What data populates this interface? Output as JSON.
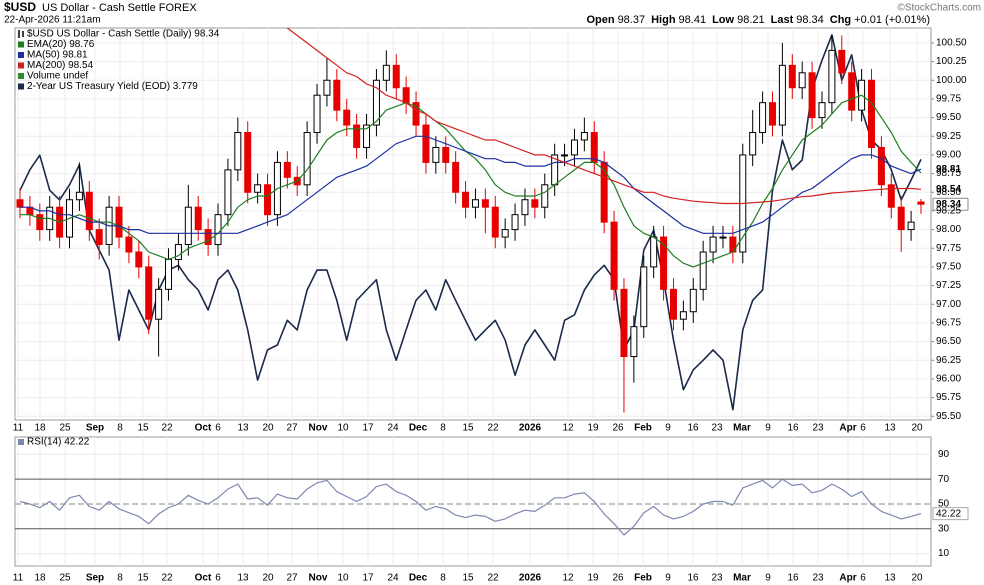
{
  "header": {
    "symbol": "$USD",
    "name": "US Dollar - Cash Settle FOREX",
    "timestamp": "22-Apr-2026 11:21am",
    "quote": [
      {
        "label": "Open",
        "value": "98.37"
      },
      {
        "label": "High",
        "value": "98.41"
      },
      {
        "label": "Low",
        "value": "98.21"
      },
      {
        "label": "Last",
        "value": "98.34"
      },
      {
        "label": "Chg",
        "value": "+0.01 (+0.01%)"
      }
    ],
    "copyright": "©StockCharts.com"
  },
  "chart_data": [
    {
      "type": "candlestick",
      "title": "$USD US Dollar - Cash Settle (Daily) 98.34",
      "volume_label": "Volume undef",
      "x_labels": [
        "11",
        "18",
        "25",
        "Sep",
        "8",
        "15",
        "22",
        "Oct",
        "6",
        "13",
        "20",
        "27",
        "Nov",
        "10",
        "17",
        "24",
        "Dec",
        "8",
        "15",
        "22",
        "2026",
        "12",
        "19",
        "26",
        "Feb",
        "9",
        "16",
        "23",
        "Mar",
        "9",
        "16",
        "23",
        "Apr",
        "6",
        "13",
        "20"
      ],
      "open": [
        98.4,
        98.3,
        98.2,
        98.0,
        98.3,
        97.9,
        98.4,
        98.5,
        98.0,
        97.8,
        98.3,
        97.9,
        97.7,
        97.5,
        96.8,
        97.2,
        97.6,
        97.8,
        98.3,
        98.0,
        97.8,
        98.2,
        98.8,
        99.3,
        98.5,
        98.6,
        98.2,
        98.9,
        98.7,
        98.6,
        99.3,
        99.8,
        100.0,
        99.6,
        99.4,
        99.1,
        99.4,
        100.0,
        100.2,
        99.9,
        99.7,
        99.4,
        98.9,
        99.1,
        98.9,
        98.5,
        98.3,
        98.4,
        98.3,
        97.9,
        98.0,
        98.2,
        98.4,
        98.3,
        98.6,
        99.0,
        99.0,
        99.2,
        99.3,
        98.9,
        98.1,
        97.2,
        96.3,
        96.7,
        97.5,
        97.9,
        97.2,
        96.8,
        96.9,
        97.2,
        97.7,
        97.9,
        97.9,
        97.7,
        99.0,
        99.3,
        99.7,
        99.4,
        100.2,
        99.9,
        100.1,
        99.5,
        99.7,
        100.4,
        100.1,
        99.6,
        100.0,
        99.1,
        98.6,
        98.3,
        98.0,
        98.37
      ],
      "high": [
        98.55,
        98.45,
        98.35,
        98.45,
        98.45,
        98.55,
        98.9,
        98.65,
        98.15,
        98.45,
        98.45,
        98.05,
        97.85,
        97.65,
        97.35,
        97.75,
        97.95,
        98.6,
        98.45,
        98.15,
        98.35,
        98.95,
        99.5,
        99.45,
        98.75,
        98.75,
        99.05,
        99.05,
        98.85,
        99.45,
        99.95,
        100.3,
        100.15,
        99.75,
        99.55,
        99.55,
        100.15,
        100.4,
        100.35,
        100.05,
        99.85,
        99.55,
        99.25,
        99.25,
        99.05,
        98.65,
        98.55,
        98.55,
        98.45,
        98.15,
        98.35,
        98.55,
        98.55,
        98.75,
        99.15,
        99.15,
        99.35,
        99.5,
        99.45,
        99.05,
        98.25,
        97.35,
        96.85,
        97.65,
        98.05,
        98.05,
        97.35,
        97.05,
        97.35,
        97.85,
        98.05,
        98.05,
        98.05,
        99.15,
        99.6,
        99.85,
        99.85,
        100.5,
        100.35,
        100.25,
        100.25,
        99.85,
        100.6,
        100.6,
        100.25,
        100.15,
        100.15,
        99.25,
        98.75,
        98.45,
        98.25,
        98.41
      ],
      "low": [
        98.15,
        98.05,
        97.85,
        97.85,
        97.75,
        97.75,
        98.25,
        97.85,
        97.6,
        97.65,
        97.75,
        97.55,
        97.35,
        96.6,
        96.3,
        97.05,
        97.45,
        97.65,
        97.85,
        97.65,
        97.65,
        98.05,
        98.65,
        98.35,
        98.35,
        98.05,
        98.05,
        98.55,
        98.45,
        98.45,
        99.15,
        99.65,
        99.45,
        99.25,
        98.95,
        98.95,
        99.25,
        99.85,
        99.75,
        99.55,
        99.25,
        98.75,
        98.75,
        98.75,
        98.35,
        98.15,
        98.15,
        97.95,
        97.75,
        97.75,
        97.85,
        98.05,
        98.15,
        98.15,
        98.45,
        98.85,
        98.85,
        99.05,
        98.75,
        97.95,
        97.05,
        95.55,
        95.95,
        96.55,
        97.35,
        97.05,
        96.65,
        96.65,
        96.75,
        97.05,
        97.55,
        97.75,
        97.55,
        97.55,
        98.85,
        99.15,
        99.25,
        99.25,
        99.75,
        99.75,
        99.35,
        99.35,
        99.55,
        99.95,
        99.45,
        99.45,
        98.95,
        98.45,
        98.15,
        97.7,
        97.85,
        98.21
      ],
      "close": [
        98.3,
        98.2,
        98.0,
        98.3,
        97.9,
        98.4,
        98.5,
        98.0,
        97.8,
        98.3,
        97.9,
        97.7,
        97.5,
        96.8,
        97.2,
        97.6,
        97.8,
        98.3,
        98.0,
        97.8,
        98.2,
        98.8,
        99.3,
        98.5,
        98.6,
        98.2,
        98.9,
        98.7,
        98.6,
        99.3,
        99.8,
        100.0,
        99.6,
        99.4,
        99.1,
        99.4,
        100.0,
        100.2,
        99.9,
        99.7,
        99.4,
        98.9,
        99.1,
        98.9,
        98.5,
        98.3,
        98.4,
        98.3,
        97.9,
        98.0,
        98.2,
        98.4,
        98.3,
        98.6,
        99.0,
        99.0,
        99.2,
        99.3,
        98.9,
        98.1,
        97.2,
        96.3,
        96.7,
        97.5,
        97.9,
        97.2,
        96.8,
        96.9,
        97.2,
        97.7,
        97.9,
        97.9,
        97.7,
        99.0,
        99.3,
        99.7,
        99.4,
        100.2,
        99.9,
        100.1,
        99.5,
        99.7,
        100.4,
        100.1,
        99.6,
        100.0,
        99.1,
        98.6,
        98.3,
        98.0,
        98.1,
        98.34
      ],
      "up_color": "#000000",
      "down_color": "#e60000",
      "volume_color": "#2e8b2e",
      "series": [
        {
          "name": "EMA(20) 98.76",
          "color": "#1e7d1e",
          "values": [
            98.2,
            98.2,
            98.15,
            98.15,
            98.1,
            98.15,
            98.2,
            98.15,
            98.1,
            98.1,
            98.05,
            97.95,
            97.85,
            97.7,
            97.65,
            97.6,
            97.65,
            97.75,
            97.8,
            97.85,
            97.95,
            98.1,
            98.3,
            98.4,
            98.45,
            98.45,
            98.55,
            98.6,
            98.65,
            98.8,
            99.0,
            99.2,
            99.3,
            99.35,
            99.35,
            99.35,
            99.45,
            99.6,
            99.65,
            99.7,
            99.65,
            99.55,
            99.45,
            99.35,
            99.2,
            99.05,
            98.95,
            98.8,
            98.6,
            98.5,
            98.45,
            98.45,
            98.45,
            98.5,
            98.6,
            98.7,
            98.8,
            98.9,
            98.9,
            98.8,
            98.6,
            98.3,
            98.05,
            97.95,
            97.9,
            97.8,
            97.65,
            97.55,
            97.5,
            97.55,
            97.6,
            97.65,
            97.7,
            97.9,
            98.1,
            98.35,
            98.55,
            98.8,
            99.0,
            99.2,
            99.3,
            99.4,
            99.55,
            99.7,
            99.75,
            99.8,
            99.7,
            99.5,
            99.3,
            99.05,
            98.9,
            98.76
          ]
        },
        {
          "name": "MA(50) 98.81",
          "color": "#1c2fa0",
          "values": [
            98.3,
            98.3,
            98.25,
            98.25,
            98.2,
            98.2,
            98.15,
            98.1,
            98.1,
            98.05,
            98.05,
            98.0,
            98.0,
            97.95,
            97.95,
            97.95,
            97.95,
            97.95,
            97.95,
            97.95,
            97.95,
            97.95,
            97.95,
            98.0,
            98.05,
            98.1,
            98.15,
            98.2,
            98.3,
            98.4,
            98.5,
            98.6,
            98.7,
            98.75,
            98.8,
            98.85,
            98.95,
            99.05,
            99.15,
            99.2,
            99.25,
            99.25,
            99.2,
            99.15,
            99.1,
            99.05,
            99.0,
            98.95,
            98.95,
            98.9,
            98.9,
            98.85,
            98.85,
            98.85,
            98.9,
            98.9,
            98.95,
            98.95,
            98.95,
            98.9,
            98.8,
            98.7,
            98.55,
            98.45,
            98.35,
            98.25,
            98.15,
            98.05,
            98.0,
            97.95,
            97.95,
            97.95,
            97.95,
            98.0,
            98.05,
            98.1,
            98.2,
            98.3,
            98.4,
            98.5,
            98.55,
            98.65,
            98.75,
            98.85,
            98.95,
            99.0,
            99.0,
            98.95,
            98.85,
            98.8,
            98.75,
            98.81
          ]
        },
        {
          "name": "MA(200) 98.54",
          "color": "#d42020",
          "values": [
            null,
            null,
            null,
            null,
            null,
            null,
            null,
            null,
            null,
            null,
            null,
            null,
            null,
            null,
            null,
            null,
            null,
            null,
            null,
            null,
            null,
            null,
            null,
            null,
            null,
            null,
            null,
            100.7,
            100.6,
            100.5,
            100.4,
            100.3,
            100.2,
            100.1,
            100.05,
            99.95,
            99.9,
            99.8,
            99.75,
            99.7,
            99.6,
            99.55,
            99.45,
            99.4,
            99.35,
            99.3,
            99.25,
            99.2,
            99.2,
            99.15,
            99.1,
            99.05,
            99.0,
            99.0,
            98.95,
            98.9,
            98.85,
            98.8,
            98.75,
            98.7,
            98.65,
            98.6,
            98.55,
            98.5,
            98.5,
            98.45,
            98.42,
            98.4,
            98.38,
            98.37,
            98.36,
            98.35,
            98.35,
            98.35,
            98.36,
            98.37,
            98.38,
            98.4,
            98.42,
            98.44,
            98.45,
            98.47,
            98.49,
            98.5,
            98.51,
            98.52,
            98.53,
            98.54,
            98.55,
            98.55,
            98.55,
            98.54
          ]
        },
        {
          "name": "2-Year US Treasury Yield (EOD) 3.779",
          "color": "#1b2a4a",
          "axis": "y2",
          "values": [
            3.734,
            3.764,
            3.785,
            3.734,
            3.72,
            3.742,
            3.771,
            3.676,
            3.647,
            3.618,
            3.516,
            3.589,
            3.56,
            3.531,
            3.589,
            3.618,
            3.625,
            3.604,
            3.589,
            3.56,
            3.604,
            3.618,
            3.589,
            3.531,
            3.458,
            3.502,
            3.509,
            3.545,
            3.531,
            3.589,
            3.618,
            3.618,
            3.574,
            3.516,
            3.574,
            3.589,
            3.604,
            3.531,
            3.487,
            3.531,
            3.574,
            3.589,
            3.56,
            3.604,
            3.574,
            3.545,
            3.516,
            3.531,
            3.545,
            3.516,
            3.465,
            3.509,
            3.531,
            3.509,
            3.487,
            3.545,
            3.553,
            3.589,
            3.611,
            3.625,
            3.604,
            3.502,
            3.531,
            3.647,
            3.676,
            3.604,
            3.516,
            3.444,
            3.473,
            3.487,
            3.502,
            3.487,
            3.415,
            3.531,
            3.574,
            3.589,
            3.734,
            3.807,
            3.764,
            3.778,
            3.88,
            3.923,
            3.96,
            3.894,
            3.931,
            3.851,
            3.807,
            3.793,
            3.764,
            3.72,
            3.749,
            3.779
          ]
        }
      ],
      "ylim": [
        95.45,
        100.7
      ],
      "yticks": [
        {
          "value": 95.5,
          "label": "95.50"
        },
        {
          "value": 95.75,
          "label": "95.75"
        },
        {
          "value": 96,
          "label": "96.00"
        },
        {
          "value": 96.25,
          "label": "96.25"
        },
        {
          "value": 96.5,
          "label": "96.50"
        },
        {
          "value": 96.75,
          "label": "96.75"
        },
        {
          "value": 97,
          "label": "97.00"
        },
        {
          "value": 97.25,
          "label": "97.25"
        },
        {
          "value": 97.5,
          "label": "97.50"
        },
        {
          "value": 97.75,
          "label": "97.75"
        },
        {
          "value": 98,
          "label": "98.00"
        },
        {
          "value": 98.25,
          "label": "98.25"
        },
        {
          "value": 98.5,
          "label": "98.50"
        },
        {
          "value": 98.75,
          "label": "98.75"
        },
        {
          "value": 99,
          "label": "99.00"
        },
        {
          "value": 99.25,
          "label": "99.25"
        },
        {
          "value": 99.5,
          "label": "99.50"
        },
        {
          "value": 99.75,
          "label": "99.75"
        },
        {
          "value": 100,
          "label": "100.00"
        },
        {
          "value": 100.25,
          "label": "100.25"
        },
        {
          "value": 100.5,
          "label": "100.50"
        }
      ],
      "y2lim": [
        3.4,
        3.97
      ],
      "grid": true
    },
    {
      "type": "line",
      "title": "RSI(14) 42.22",
      "color": "#7d88b0",
      "values": [
        52,
        50,
        47,
        52,
        45,
        55,
        57,
        48,
        45,
        52,
        46,
        43,
        40,
        34,
        42,
        47,
        50,
        57,
        53,
        50,
        55,
        62,
        66,
        54,
        55,
        49,
        58,
        55,
        54,
        62,
        67,
        69,
        60,
        56,
        52,
        56,
        64,
        66,
        60,
        57,
        52,
        45,
        48,
        46,
        41,
        39,
        41,
        40,
        36,
        38,
        42,
        45,
        44,
        49,
        55,
        55,
        58,
        59,
        52,
        42,
        34,
        25,
        32,
        43,
        48,
        41,
        38,
        40,
        44,
        50,
        52,
        52,
        49,
        63,
        66,
        69,
        63,
        70,
        65,
        66,
        59,
        61,
        66,
        62,
        56,
        60,
        50,
        44,
        41,
        38,
        40,
        42.22
      ],
      "ylim": [
        0,
        104
      ],
      "yticks": [
        90,
        70,
        50,
        30,
        10
      ],
      "grid": true
    }
  ]
}
